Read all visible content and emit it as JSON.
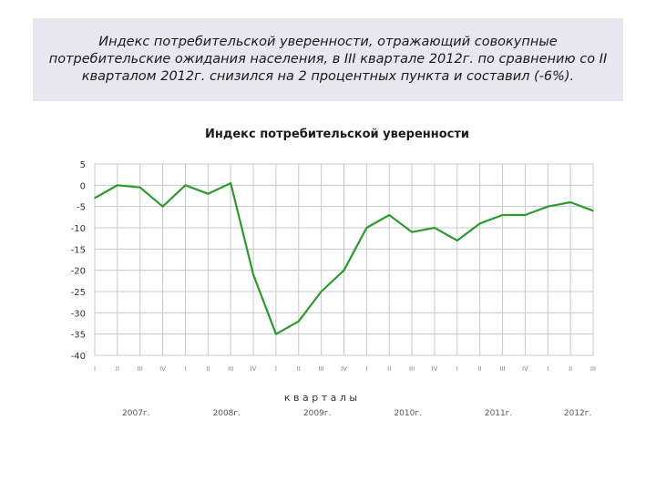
{
  "caption": "Индекс потребительской уверенности, отражающий совокупные потребительские ожидания населения, в III квартале 2012г. по сравнению со II кварталом 2012г. снизился на 2 процентных пункта и составил (-6%).",
  "chart_data": {
    "type": "line",
    "title": "Индекс потребительской уверенности",
    "xlabel": "к в а р т а л ы",
    "ylabel": "",
    "ylim": [
      -40,
      5
    ],
    "yticks": [
      5,
      0,
      -5,
      -10,
      -15,
      -20,
      -25,
      -30,
      -35,
      -40
    ],
    "grid": true,
    "line_color": "#2e9a2e",
    "categories": [
      "I",
      "II",
      "III",
      "IV",
      "I",
      "II",
      "III",
      "IV",
      "I",
      "II",
      "III",
      "IV",
      "I",
      "II",
      "III",
      "IV",
      "I",
      "II",
      "III",
      "IV",
      "I",
      "II",
      "III"
    ],
    "years": [
      "2007г.",
      "2008г.",
      "2009г.",
      "2010г.",
      "2011г.",
      "2012г."
    ],
    "series": [
      {
        "values": [
          -3,
          0,
          -0.5,
          -5,
          0,
          -2,
          0.5,
          -21,
          -35,
          -32,
          -25,
          -20,
          -10,
          -7,
          -11,
          -10,
          -13,
          -9,
          -7,
          -7,
          -5,
          -4,
          -6
        ]
      }
    ]
  }
}
